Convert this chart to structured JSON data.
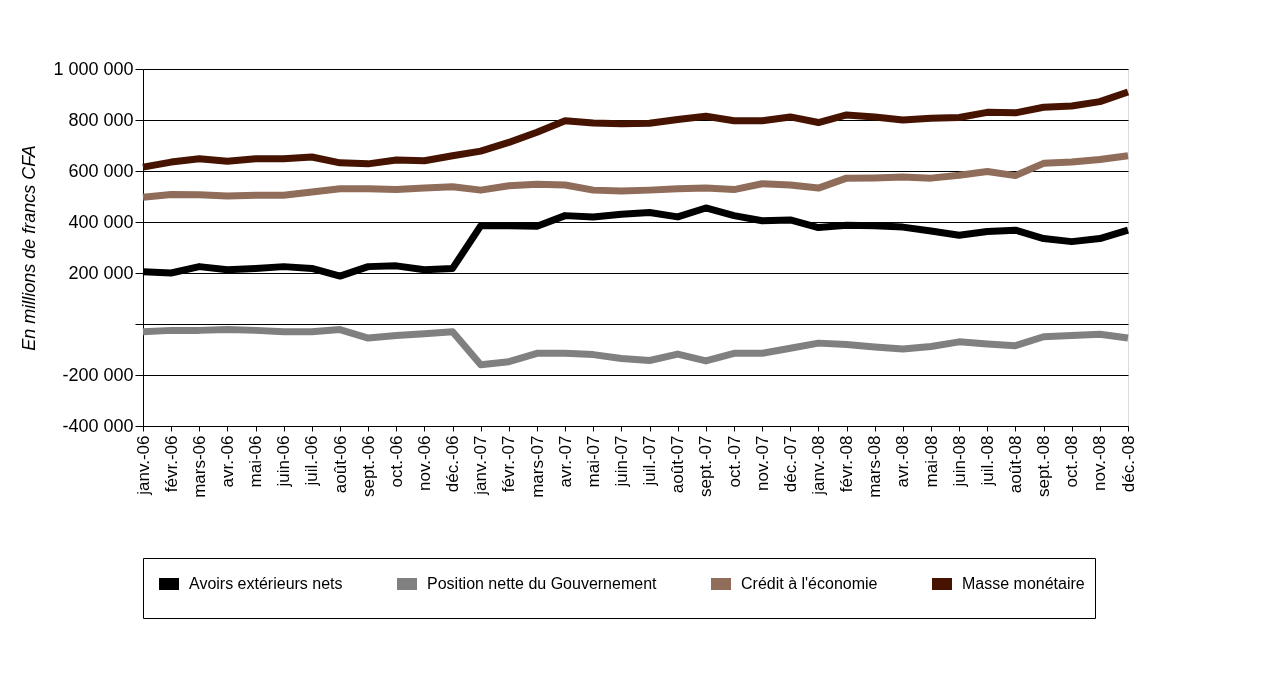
{
  "chart_data": {
    "type": "line",
    "ylabel": "En millions de francs CFA",
    "categories": [
      "janv.-06",
      "févr.-06",
      "mars-06",
      "avr.-06",
      "mai-06",
      "juin-06",
      "juil.-06",
      "août-06",
      "sept.-06",
      "oct.-06",
      "nov.-06",
      "déc.-06",
      "janv.-07",
      "févr.-07",
      "mars-07",
      "avr.-07",
      "mai-07",
      "juin-07",
      "juil.-07",
      "août-07",
      "sept.-07",
      "oct.-07",
      "nov.-07",
      "déc.-07",
      "janv.-08",
      "févr.-08",
      "mars-08",
      "avr.-08",
      "mai-08",
      "juin-08",
      "juil.-08",
      "août-08",
      "sept.-08",
      "oct.-08",
      "nov.-08",
      "déc.-08"
    ],
    "series": [
      {
        "name": "Avoirs extérieurs nets",
        "color": "#000000",
        "values": [
          205000,
          200000,
          225000,
          213000,
          218000,
          225000,
          218000,
          188000,
          225000,
          228000,
          213000,
          218000,
          385000,
          385000,
          383000,
          425000,
          420000,
          430000,
          437000,
          420000,
          455000,
          425000,
          405000,
          408000,
          378000,
          387000,
          385000,
          380000,
          365000,
          348000,
          363000,
          368000,
          335000,
          323000,
          335000,
          368000
        ]
      },
      {
        "name": "Position nette du Gouvernement",
        "color": "#808080",
        "values": [
          -30000,
          -25000,
          -25000,
          -22000,
          -25000,
          -30000,
          -30000,
          -22000,
          -55000,
          -45000,
          -38000,
          -30000,
          -160000,
          -148000,
          -115000,
          -115000,
          -120000,
          -135000,
          -143000,
          -118000,
          -145000,
          -115000,
          -115000,
          -95000,
          -75000,
          -80000,
          -90000,
          -98000,
          -88000,
          -70000,
          -78000,
          -85000,
          -50000,
          -45000,
          -40000,
          -55000
        ]
      },
      {
        "name": "Crédit à l'économie",
        "color": "#8f6d5a",
        "values": [
          497000,
          508000,
          507000,
          502000,
          505000,
          505000,
          518000,
          530000,
          530000,
          527000,
          533000,
          538000,
          525000,
          542000,
          548000,
          545000,
          525000,
          522000,
          525000,
          530000,
          533000,
          527000,
          550000,
          545000,
          533000,
          572000,
          573000,
          576000,
          572000,
          583000,
          598000,
          582000,
          630000,
          635000,
          645000,
          660000
        ]
      },
      {
        "name": "Masse monétaire",
        "color": "#451300",
        "values": [
          615000,
          635000,
          648000,
          638000,
          648000,
          648000,
          655000,
          632000,
          628000,
          643000,
          640000,
          660000,
          678000,
          712000,
          752000,
          797000,
          788000,
          785000,
          787000,
          802000,
          815000,
          797000,
          797000,
          812000,
          790000,
          820000,
          812000,
          800000,
          807000,
          810000,
          830000,
          828000,
          850000,
          855000,
          872000,
          910000
        ]
      }
    ],
    "ylim": [
      -400000,
      1000000
    ],
    "yticks": [
      {
        "value": -400000,
        "label": "-400 000"
      },
      {
        "value": -200000,
        "label": "-200 000"
      },
      {
        "value": 0,
        "label": null
      },
      {
        "value": 200000,
        "label": "200 000"
      },
      {
        "value": 400000,
        "label": "400 000"
      },
      {
        "value": 600000,
        "label": "600 000"
      },
      {
        "value": 800000,
        "label": "800 000"
      },
      {
        "value": 1000000,
        "label": "1 000 000"
      }
    ],
    "grid": "y",
    "legend": "bottom",
    "marker": "none",
    "line_style": "solid"
  }
}
